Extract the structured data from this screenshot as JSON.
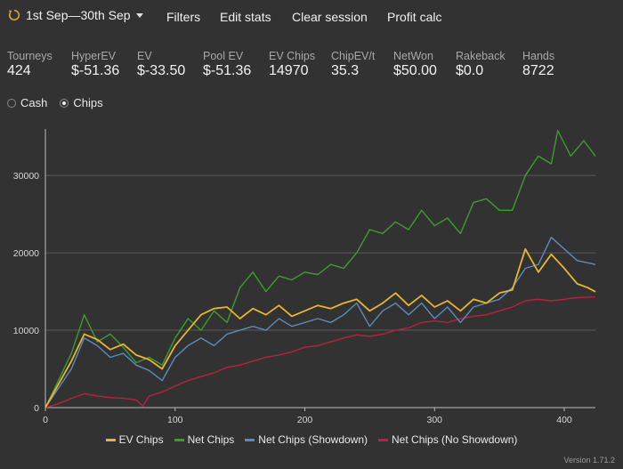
{
  "toolbar": {
    "date_range": "1st Sep—30th Sep",
    "filters": "Filters",
    "edit_stats": "Edit stats",
    "clear_session": "Clear session",
    "profit_calc": "Profit calc"
  },
  "stats": [
    {
      "label": "Tourneys",
      "value": "424"
    },
    {
      "label": "HyperEV",
      "value": "$-51.36"
    },
    {
      "label": "EV",
      "value": "$-33.50"
    },
    {
      "label": "Pool EV",
      "value": "$-51.36"
    },
    {
      "label": "EV Chips",
      "value": "14970"
    },
    {
      "label": "ChipEV/t",
      "value": "35.3"
    },
    {
      "label": "NetWon",
      "value": "$50.00"
    },
    {
      "label": "Rakeback",
      "value": "$0.0"
    },
    {
      "label": "Hands",
      "value": "8722"
    }
  ],
  "mode": {
    "cash": "Cash",
    "chips": "Chips",
    "selected": "chips"
  },
  "version": "Version 1.71.2",
  "chart_data": {
    "type": "line",
    "xlim": [
      0,
      424
    ],
    "ylim": [
      0,
      36000
    ],
    "x_ticks": [
      0,
      100,
      200,
      300,
      400
    ],
    "y_ticks": [
      0,
      10000,
      20000,
      30000
    ],
    "grid": "horizontal",
    "legend_position": "bottom",
    "series": [
      {
        "name": "EV Chips",
        "color": "#e8b52e",
        "points": [
          [
            0,
            0
          ],
          [
            10,
            3000
          ],
          [
            20,
            6000
          ],
          [
            30,
            9500
          ],
          [
            40,
            8800
          ],
          [
            50,
            7500
          ],
          [
            60,
            8200
          ],
          [
            70,
            6800
          ],
          [
            80,
            6200
          ],
          [
            90,
            5000
          ],
          [
            100,
            8000
          ],
          [
            110,
            10000
          ],
          [
            120,
            12000
          ],
          [
            130,
            12800
          ],
          [
            140,
            13000
          ],
          [
            150,
            11500
          ],
          [
            160,
            12800
          ],
          [
            170,
            12000
          ],
          [
            180,
            13200
          ],
          [
            190,
            11800
          ],
          [
            200,
            12500
          ],
          [
            210,
            13200
          ],
          [
            220,
            12800
          ],
          [
            230,
            13500
          ],
          [
            240,
            14000
          ],
          [
            250,
            12500
          ],
          [
            260,
            13500
          ],
          [
            270,
            14800
          ],
          [
            280,
            13200
          ],
          [
            290,
            14500
          ],
          [
            300,
            13000
          ],
          [
            310,
            13800
          ],
          [
            320,
            12500
          ],
          [
            330,
            14000
          ],
          [
            340,
            13500
          ],
          [
            350,
            14800
          ],
          [
            360,
            15200
          ],
          [
            370,
            20500
          ],
          [
            380,
            17500
          ],
          [
            390,
            19800
          ],
          [
            400,
            18000
          ],
          [
            410,
            16000
          ],
          [
            418,
            15500
          ],
          [
            424,
            14970
          ]
        ]
      },
      {
        "name": "Net Chips",
        "color": "#3f9b30",
        "points": [
          [
            0,
            0
          ],
          [
            10,
            3500
          ],
          [
            20,
            7000
          ],
          [
            30,
            12000
          ],
          [
            40,
            8500
          ],
          [
            50,
            9500
          ],
          [
            60,
            7800
          ],
          [
            70,
            5800
          ],
          [
            80,
            6500
          ],
          [
            90,
            5500
          ],
          [
            100,
            9000
          ],
          [
            110,
            11500
          ],
          [
            120,
            10000
          ],
          [
            130,
            12500
          ],
          [
            140,
            11000
          ],
          [
            150,
            15500
          ],
          [
            160,
            17500
          ],
          [
            170,
            15000
          ],
          [
            180,
            17000
          ],
          [
            190,
            16500
          ],
          [
            200,
            17500
          ],
          [
            210,
            17200
          ],
          [
            220,
            18500
          ],
          [
            230,
            18000
          ],
          [
            240,
            20000
          ],
          [
            250,
            23000
          ],
          [
            260,
            22500
          ],
          [
            270,
            24000
          ],
          [
            280,
            23000
          ],
          [
            290,
            25500
          ],
          [
            300,
            23500
          ],
          [
            310,
            24500
          ],
          [
            320,
            22500
          ],
          [
            330,
            26500
          ],
          [
            340,
            27000
          ],
          [
            350,
            25500
          ],
          [
            360,
            25500
          ],
          [
            370,
            30000
          ],
          [
            380,
            32500
          ],
          [
            390,
            31500
          ],
          [
            395,
            35800
          ],
          [
            405,
            32500
          ],
          [
            415,
            34500
          ],
          [
            424,
            32500
          ]
        ]
      },
      {
        "name": "Net Chips (Showdown)",
        "color": "#5b8bbd",
        "points": [
          [
            0,
            0
          ],
          [
            10,
            2500
          ],
          [
            20,
            5000
          ],
          [
            30,
            9000
          ],
          [
            40,
            8000
          ],
          [
            50,
            6500
          ],
          [
            60,
            7000
          ],
          [
            70,
            5500
          ],
          [
            80,
            4800
          ],
          [
            90,
            3500
          ],
          [
            100,
            6500
          ],
          [
            110,
            8000
          ],
          [
            120,
            9000
          ],
          [
            130,
            8000
          ],
          [
            140,
            9500
          ],
          [
            150,
            10000
          ],
          [
            160,
            10500
          ],
          [
            170,
            10000
          ],
          [
            180,
            11500
          ],
          [
            190,
            10500
          ],
          [
            200,
            11000
          ],
          [
            210,
            11500
          ],
          [
            220,
            11000
          ],
          [
            230,
            12000
          ],
          [
            240,
            13500
          ],
          [
            250,
            10500
          ],
          [
            260,
            12500
          ],
          [
            270,
            13500
          ],
          [
            280,
            12000
          ],
          [
            290,
            13500
          ],
          [
            300,
            11500
          ],
          [
            310,
            13000
          ],
          [
            320,
            11000
          ],
          [
            330,
            13000
          ],
          [
            340,
            13500
          ],
          [
            350,
            14000
          ],
          [
            360,
            15500
          ],
          [
            370,
            18000
          ],
          [
            380,
            18500
          ],
          [
            390,
            22000
          ],
          [
            400,
            20500
          ],
          [
            410,
            19000
          ],
          [
            424,
            18500
          ]
        ]
      },
      {
        "name": "Net Chips (No Showdown)",
        "color": "#b8213f",
        "points": [
          [
            0,
            0
          ],
          [
            10,
            500
          ],
          [
            20,
            1200
          ],
          [
            30,
            1800
          ],
          [
            40,
            1500
          ],
          [
            50,
            1300
          ],
          [
            60,
            1200
          ],
          [
            70,
            1000
          ],
          [
            75,
            200
          ],
          [
            80,
            1500
          ],
          [
            90,
            2000
          ],
          [
            100,
            2800
          ],
          [
            110,
            3500
          ],
          [
            120,
            4000
          ],
          [
            130,
            4500
          ],
          [
            140,
            5200
          ],
          [
            150,
            5500
          ],
          [
            160,
            6000
          ],
          [
            170,
            6500
          ],
          [
            180,
            6800
          ],
          [
            190,
            7200
          ],
          [
            200,
            7800
          ],
          [
            210,
            8000
          ],
          [
            220,
            8500
          ],
          [
            230,
            9000
          ],
          [
            240,
            9400
          ],
          [
            250,
            9200
          ],
          [
            260,
            9500
          ],
          [
            270,
            10000
          ],
          [
            280,
            10300
          ],
          [
            290,
            11000
          ],
          [
            300,
            11200
          ],
          [
            310,
            11000
          ],
          [
            320,
            11500
          ],
          [
            330,
            11800
          ],
          [
            340,
            12000
          ],
          [
            350,
            12500
          ],
          [
            360,
            13000
          ],
          [
            370,
            13800
          ],
          [
            380,
            14000
          ],
          [
            390,
            13800
          ],
          [
            400,
            14000
          ],
          [
            410,
            14200
          ],
          [
            424,
            14300
          ]
        ]
      }
    ]
  }
}
